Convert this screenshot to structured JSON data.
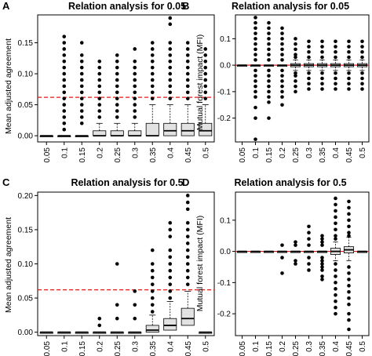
{
  "colors": {
    "box_fill": "#e2e2e2",
    "outline": "#000000",
    "reference_line": "#e31a1c",
    "background": "#ffffff"
  },
  "chart_data": [
    {
      "panel_label": "A",
      "type": "box",
      "title": "Relation analysis for 0.05",
      "ylabel": "Mean adjusted agreement",
      "xlabel": "",
      "categories": [
        "0.05",
        "0.1",
        "0.15",
        "0.2",
        "0.25",
        "0.3",
        "0.35",
        "0.4",
        "0.45",
        "0.5"
      ],
      "ylim": [
        -0.01,
        0.195
      ],
      "yticks": [
        0.0,
        0.05,
        0.1,
        0.15
      ],
      "ytick_labels": [
        "0.00",
        "0.05",
        "0.10",
        "0.15"
      ],
      "reference_line": {
        "y": 0.062,
        "style": "dashed"
      },
      "boxes": [
        {
          "q1": 0,
          "median": 0,
          "q3": 0,
          "whisker_high": 0
        },
        {
          "q1": 0,
          "median": 0,
          "q3": 0,
          "whisker_high": 0
        },
        {
          "q1": 0,
          "median": 0,
          "q3": 0,
          "whisker_high": 0
        },
        {
          "q1": 0,
          "median": 0,
          "q3": 0.008,
          "whisker_high": 0.02
        },
        {
          "q1": 0,
          "median": 0,
          "q3": 0.008,
          "whisker_high": 0.02
        },
        {
          "q1": 0,
          "median": 0,
          "q3": 0.008,
          "whisker_high": 0.02
        },
        {
          "q1": 0,
          "median": 0,
          "q3": 0.02,
          "whisker_high": 0.05
        },
        {
          "q1": 0,
          "median": 0.008,
          "q3": 0.02,
          "whisker_high": 0.05
        },
        {
          "q1": 0,
          "median": 0.008,
          "q3": 0.02,
          "whisker_high": 0.05
        },
        {
          "q1": 0,
          "median": 0.008,
          "q3": 0.02,
          "whisker_high": 0.05
        }
      ],
      "outliers": [
        [],
        [
          0.16,
          0.15,
          0.14,
          0.13,
          0.12,
          0.11,
          0.1,
          0.09,
          0.08,
          0.07,
          0.06,
          0.05,
          0.04,
          0.03,
          0.02,
          0.01
        ],
        [
          0.15,
          0.13,
          0.12,
          0.11,
          0.1,
          0.09,
          0.08,
          0.07,
          0.06,
          0.05,
          0.04,
          0.03,
          0.02
        ],
        [
          0.12,
          0.11,
          0.1,
          0.09,
          0.08,
          0.07,
          0.06,
          0.05,
          0.04,
          0.03
        ],
        [
          0.13,
          0.12,
          0.11,
          0.1,
          0.09,
          0.08,
          0.07,
          0.06,
          0.05,
          0.04,
          0.03
        ],
        [
          0.14,
          0.12,
          0.11,
          0.1,
          0.09,
          0.08,
          0.07,
          0.06,
          0.05,
          0.04,
          0.03
        ],
        [
          0.15,
          0.14,
          0.13,
          0.12,
          0.11,
          0.1,
          0.09,
          0.08,
          0.07,
          0.06
        ],
        [
          0.19,
          0.18,
          0.15,
          0.14,
          0.13,
          0.12,
          0.11,
          0.1,
          0.09,
          0.08,
          0.07,
          0.06
        ],
        [
          0.15,
          0.14,
          0.13,
          0.12,
          0.11,
          0.1,
          0.09,
          0.08,
          0.07,
          0.06
        ],
        [
          0.14,
          0.13,
          0.12,
          0.11,
          0.1,
          0.09,
          0.08,
          0.07,
          0.06
        ]
      ]
    },
    {
      "panel_label": "B",
      "type": "box",
      "title": "Relation analysis for 0.05",
      "ylabel": "Mutual forest impact (MFI)",
      "xlabel": "",
      "categories": [
        "0.05",
        "0.1",
        "0.15",
        "0.2",
        "0.25",
        "0.3",
        "0.35",
        "0.4",
        "0.45",
        "0.5"
      ],
      "ylim": [
        -0.29,
        0.19
      ],
      "yticks": [
        -0.2,
        -0.1,
        0.0,
        0.1
      ],
      "ytick_labels": [
        "-0.2",
        "-0.1",
        "0.0",
        "0.1"
      ],
      "reference_line": {
        "y": 0.0,
        "style": "solid"
      },
      "boxes": [
        {
          "q1": 0,
          "median": 0,
          "q3": 0,
          "whisker_low": 0,
          "whisker_high": 0
        },
        {
          "q1": 0,
          "median": 0,
          "q3": 0,
          "whisker_low": 0,
          "whisker_high": 0
        },
        {
          "q1": 0,
          "median": 0,
          "q3": 0,
          "whisker_low": 0,
          "whisker_high": 0
        },
        {
          "q1": 0,
          "median": 0,
          "q3": 0,
          "whisker_low": 0,
          "whisker_high": 0
        },
        {
          "q1": -0.006,
          "median": 0,
          "q3": 0.006,
          "whisker_low": -0.02,
          "whisker_high": 0.02
        },
        {
          "q1": -0.006,
          "median": 0,
          "q3": 0.006,
          "whisker_low": -0.02,
          "whisker_high": 0.02
        },
        {
          "q1": -0.006,
          "median": 0,
          "q3": 0.006,
          "whisker_low": -0.02,
          "whisker_high": 0.02
        },
        {
          "q1": -0.006,
          "median": 0,
          "q3": 0.006,
          "whisker_low": -0.02,
          "whisker_high": 0.02
        },
        {
          "q1": -0.006,
          "median": 0,
          "q3": 0.006,
          "whisker_low": -0.02,
          "whisker_high": 0.02
        },
        {
          "q1": -0.006,
          "median": 0,
          "q3": 0.006,
          "whisker_low": -0.02,
          "whisker_high": 0.02
        }
      ],
      "outliers": [
        [],
        [
          0.18,
          0.16,
          0.14,
          0.12,
          0.1,
          0.08,
          0.06,
          0.04,
          0.02,
          -0.02,
          -0.04,
          -0.06,
          -0.08,
          -0.1,
          -0.12,
          -0.16,
          -0.2,
          -0.28
        ],
        [
          0.16,
          0.14,
          0.12,
          0.1,
          0.08,
          0.06,
          0.04,
          0.02,
          -0.02,
          -0.04,
          -0.06,
          -0.08,
          -0.1,
          -0.12,
          -0.14,
          -0.2
        ],
        [
          0.14,
          0.12,
          0.1,
          0.08,
          0.06,
          0.04,
          0.02,
          -0.02,
          -0.04,
          -0.06,
          -0.08,
          -0.1,
          -0.12,
          -0.15
        ],
        [
          0.1,
          0.08,
          0.06,
          0.04,
          0.03,
          -0.03,
          -0.04,
          -0.06,
          -0.08,
          -0.1
        ],
        [
          0.09,
          0.07,
          0.05,
          0.03,
          -0.03,
          -0.05,
          -0.07,
          -0.09
        ],
        [
          0.09,
          0.07,
          0.05,
          0.03,
          -0.03,
          -0.05,
          -0.07,
          -0.09
        ],
        [
          0.09,
          0.07,
          0.05,
          0.03,
          -0.03,
          -0.05,
          -0.07,
          -0.09
        ],
        [
          0.09,
          0.07,
          0.05,
          0.03,
          -0.03,
          -0.05,
          -0.07,
          -0.09
        ],
        [
          0.09,
          0.07,
          0.05,
          0.03,
          -0.03,
          -0.05,
          -0.07,
          -0.09
        ]
      ]
    },
    {
      "panel_label": "C",
      "type": "box",
      "title": "Relation analysis for 0.5",
      "ylabel": "Mean adjusted agreement",
      "xlabel": "",
      "categories": [
        "0.05",
        "0.1",
        "0.15",
        "0.2",
        "0.25",
        "0.3",
        "0.35",
        "0.4",
        "0.45",
        "0.5"
      ],
      "ylim": [
        -0.005,
        0.205
      ],
      "yticks": [
        0.0,
        0.05,
        0.1,
        0.15,
        0.2
      ],
      "ytick_labels": [
        "0.00",
        "0.05",
        "0.10",
        "0.15",
        "0.20"
      ],
      "reference_line": {
        "y": 0.062,
        "style": "dashed"
      },
      "boxes": [
        {
          "q1": 0,
          "median": 0,
          "q3": 0,
          "whisker_high": 0
        },
        {
          "q1": 0,
          "median": 0,
          "q3": 0,
          "whisker_high": 0
        },
        {
          "q1": 0,
          "median": 0,
          "q3": 0,
          "whisker_high": 0
        },
        {
          "q1": 0,
          "median": 0,
          "q3": 0,
          "whisker_high": 0
        },
        {
          "q1": 0,
          "median": 0,
          "q3": 0,
          "whisker_high": 0
        },
        {
          "q1": 0,
          "median": 0,
          "q3": 0,
          "whisker_high": 0
        },
        {
          "q1": 0,
          "median": 0.003,
          "q3": 0.01,
          "whisker_high": 0.025
        },
        {
          "q1": 0.003,
          "median": 0.01,
          "q3": 0.02,
          "whisker_high": 0.045
        },
        {
          "q1": 0.01,
          "median": 0.02,
          "q3": 0.035,
          "whisker_high": 0.06
        },
        {
          "q1": 0,
          "median": 0,
          "q3": 0,
          "whisker_high": 0
        }
      ],
      "outliers": [
        [],
        [],
        [],
        [
          0.02,
          0.01
        ],
        [
          0.1,
          0.04,
          0.02
        ],
        [
          0.06,
          0.04,
          0.02
        ],
        [
          0.12,
          0.1,
          0.09,
          0.08,
          0.07,
          0.06,
          0.05,
          0.04,
          0.03
        ],
        [
          0.16,
          0.15,
          0.14,
          0.12,
          0.11,
          0.1,
          0.09,
          0.08,
          0.07,
          0.06,
          0.05
        ],
        [
          0.2,
          0.19,
          0.18,
          0.16,
          0.15,
          0.14,
          0.13,
          0.12,
          0.11,
          0.1,
          0.09,
          0.08,
          0.07
        ],
        []
      ]
    },
    {
      "panel_label": "D",
      "type": "box",
      "title": "Relation analysis for 0.5",
      "ylabel": "Mutual forest impact (MFI)",
      "xlabel": "",
      "categories": [
        "0.05",
        "0.1",
        "0.15",
        "0.2",
        "0.25",
        "0.3",
        "0.35",
        "0.4",
        "0.45",
        "0.5"
      ],
      "ylim": [
        -0.27,
        0.19
      ],
      "yticks": [
        -0.2,
        -0.1,
        0.0,
        0.1
      ],
      "ytick_labels": [
        "-0.2",
        "-0.1",
        "0.0",
        "0.1"
      ],
      "reference_line": {
        "y": 0.0,
        "style": "solid"
      },
      "boxes": [
        {
          "q1": 0,
          "median": 0,
          "q3": 0,
          "whisker_low": 0,
          "whisker_high": 0
        },
        {
          "q1": 0,
          "median": 0,
          "q3": 0,
          "whisker_low": 0,
          "whisker_high": 0
        },
        {
          "q1": 0,
          "median": 0,
          "q3": 0,
          "whisker_low": 0,
          "whisker_high": 0
        },
        {
          "q1": 0,
          "median": 0,
          "q3": 0,
          "whisker_low": 0,
          "whisker_high": 0
        },
        {
          "q1": 0,
          "median": 0,
          "q3": 0,
          "whisker_low": 0,
          "whisker_high": 0
        },
        {
          "q1": 0,
          "median": 0,
          "q3": 0,
          "whisker_low": 0,
          "whisker_high": 0
        },
        {
          "q1": 0,
          "median": 0,
          "q3": 0,
          "whisker_low": 0,
          "whisker_high": 0
        },
        {
          "q1": -0.01,
          "median": 0,
          "q3": 0.01,
          "whisker_low": -0.03,
          "whisker_high": 0.03
        },
        {
          "q1": -0.005,
          "median": 0.005,
          "q3": 0.015,
          "whisker_low": -0.03,
          "whisker_high": 0.045
        },
        {
          "q1": 0,
          "median": 0,
          "q3": 0,
          "whisker_low": 0,
          "whisker_high": 0
        }
      ],
      "outliers": [
        [],
        [],
        [],
        [
          0.02,
          -0.02,
          -0.07
        ],
        [
          0.03,
          0.02,
          -0.03,
          -0.04
        ],
        [
          0.08,
          0.06,
          0.04,
          0.02,
          -0.02,
          -0.04,
          -0.06
        ],
        [
          0.05,
          0.04,
          0.03,
          0.02,
          -0.02,
          -0.03,
          -0.04,
          -0.05,
          -0.06,
          -0.08,
          -0.09
        ],
        [
          0.17,
          0.15,
          0.13,
          0.11,
          0.09,
          0.07,
          0.05,
          0.04,
          -0.04,
          -0.06,
          -0.08,
          -0.1,
          -0.12,
          -0.14,
          -0.16,
          -0.18,
          -0.2
        ],
        [
          0.16,
          0.14,
          0.12,
          0.1,
          0.08,
          0.06,
          0.05,
          -0.05,
          -0.07,
          -0.09,
          -0.11,
          -0.13,
          -0.15,
          -0.17,
          -0.2,
          -0.22,
          -0.25
        ],
        []
      ]
    }
  ]
}
